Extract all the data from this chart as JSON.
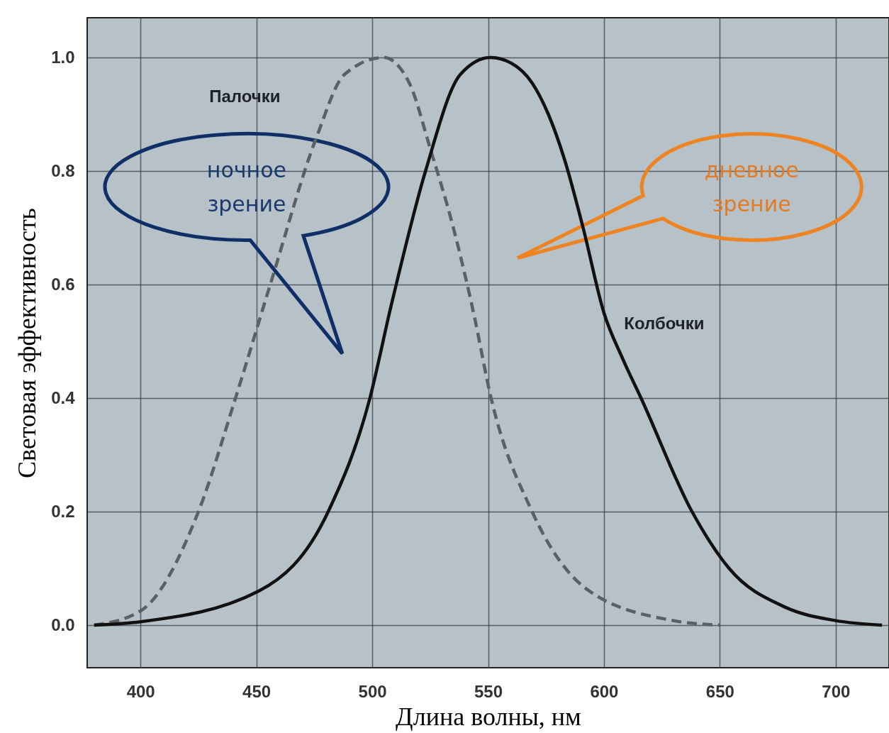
{
  "chart_data": {
    "type": "line",
    "xlabel": "Длина волны, нм",
    "ylabel": "Световая эффективность",
    "xlim": [
      377,
      723
    ],
    "ylim": [
      -0.075,
      1.07
    ],
    "xticks": [
      400,
      450,
      500,
      550,
      600,
      650,
      700
    ],
    "yticks": [
      {
        "value": 0,
        "label": "0.0"
      },
      {
        "value": 0.2,
        "label": "0.2"
      },
      {
        "value": 0.4,
        "label": "0.4"
      },
      {
        "value": 0.6,
        "label": "0.6"
      },
      {
        "value": 0.8,
        "label": "0.8"
      },
      {
        "value": 1,
        "label": "1.0"
      }
    ],
    "grid": true,
    "legend": false,
    "marker": "none",
    "series": [
      {
        "name": "Палочки",
        "color": "#5a6064",
        "line_style": "dashed",
        "x": [
          380,
          400,
          425,
          441,
          456,
          476,
          488,
          505,
          516,
          525,
          535,
          544,
          551,
          569,
          593,
          630,
          650
        ],
        "values": [
          0,
          0.025,
          0.2,
          0.4,
          0.6,
          0.86,
          0.97,
          1.0,
          0.955,
          0.84,
          0.7,
          0.545,
          0.405,
          0.2,
          0.062,
          0.008,
          0
        ]
      },
      {
        "name": "Колбочки",
        "color": "#111111",
        "line_style": "solid",
        "x": [
          380,
          400,
          451,
          481,
          499,
          508,
          523,
          538,
          551,
          560,
          569,
          576,
          583,
          591,
          600,
          608,
          616,
          638,
          654,
          678,
          700,
          720
        ],
        "values": [
          0,
          0.006,
          0.06,
          0.2,
          0.4,
          0.56,
          0.8,
          0.97,
          1.0,
          0.99,
          0.955,
          0.9,
          0.82,
          0.7,
          0.55,
          0.47,
          0.4,
          0.2,
          0.1,
          0.032,
          0.008,
          0
        ]
      }
    ],
    "annotations": [
      "ночное зрение",
      "дневное зрение"
    ]
  }
}
